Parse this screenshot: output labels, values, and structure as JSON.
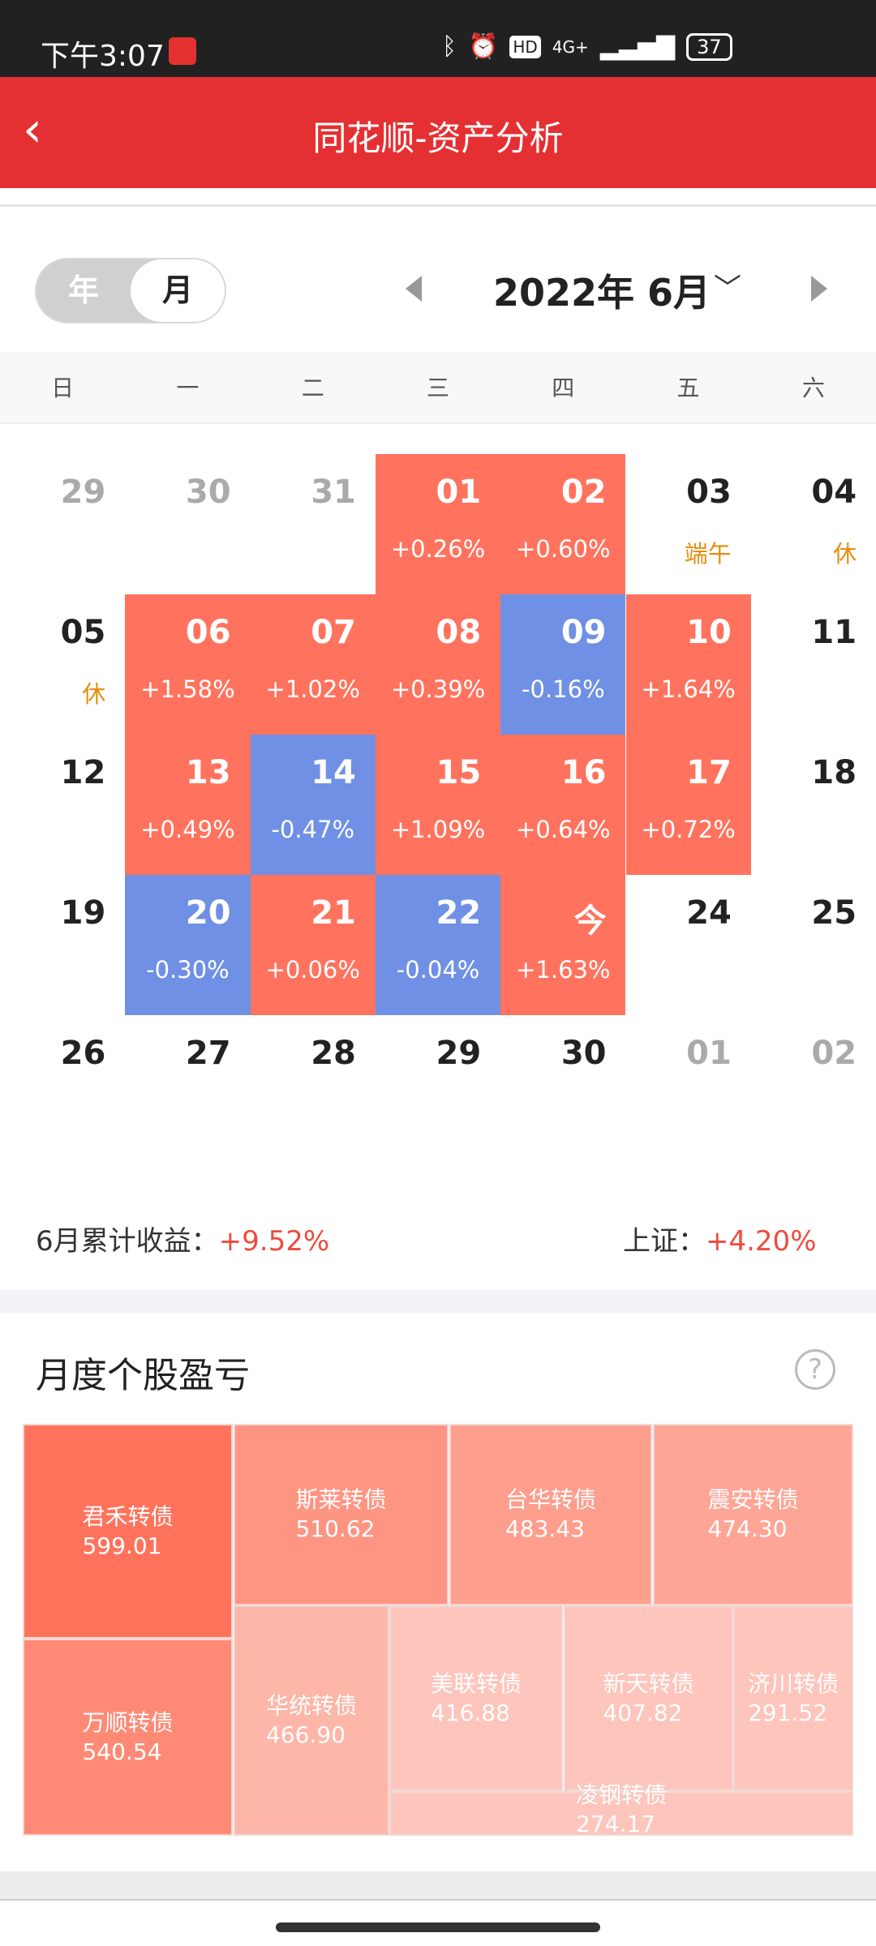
{
  "status": {
    "time": "下午3:07",
    "network": "4G+",
    "battery": "37"
  },
  "header": {
    "title": "同花顺-资产分析"
  },
  "toggle": {
    "year": "年",
    "month": "月",
    "selected": "月"
  },
  "nav": {
    "title": "2022年 6月"
  },
  "weekdays": [
    "日",
    "一",
    "二",
    "三",
    "四",
    "五",
    "六"
  ],
  "calendar": [
    {
      "d": "29",
      "muted": true
    },
    {
      "d": "30",
      "muted": true
    },
    {
      "d": "31",
      "muted": true
    },
    {
      "d": "01",
      "s": "+0.26%",
      "c": "red"
    },
    {
      "d": "02",
      "s": "+0.60%",
      "c": "red"
    },
    {
      "d": "03",
      "h": "端午"
    },
    {
      "d": "04",
      "h": "休"
    },
    {
      "d": "05",
      "h": "休"
    },
    {
      "d": "06",
      "s": "+1.58%",
      "c": "red"
    },
    {
      "d": "07",
      "s": "+1.02%",
      "c": "red"
    },
    {
      "d": "08",
      "s": "+0.39%",
      "c": "red"
    },
    {
      "d": "09",
      "s": "-0.16%",
      "c": "blue"
    },
    {
      "d": "10",
      "s": "+1.64%",
      "c": "red"
    },
    {
      "d": "11"
    },
    {
      "d": "12"
    },
    {
      "d": "13",
      "s": "+0.49%",
      "c": "red"
    },
    {
      "d": "14",
      "s": "-0.47%",
      "c": "blue"
    },
    {
      "d": "15",
      "s": "+1.09%",
      "c": "red"
    },
    {
      "d": "16",
      "s": "+0.64%",
      "c": "red"
    },
    {
      "d": "17",
      "s": "+0.72%",
      "c": "red"
    },
    {
      "d": "18"
    },
    {
      "d": "19"
    },
    {
      "d": "20",
      "s": "-0.30%",
      "c": "blue"
    },
    {
      "d": "21",
      "s": "+0.06%",
      "c": "red"
    },
    {
      "d": "22",
      "s": "-0.04%",
      "c": "blue"
    },
    {
      "d": "今",
      "s": "+1.63%",
      "c": "red"
    },
    {
      "d": "24"
    },
    {
      "d": "25"
    },
    {
      "d": "26"
    },
    {
      "d": "27"
    },
    {
      "d": "28"
    },
    {
      "d": "29"
    },
    {
      "d": "30"
    },
    {
      "d": "01",
      "muted": true
    },
    {
      "d": "02",
      "muted": true
    }
  ],
  "summary": {
    "label": "6月累计收益：",
    "value": "+9.52%",
    "index_label": "上证：",
    "index_value": "+4.20%"
  },
  "section": {
    "title": "月度个股盈亏",
    "help": "?"
  },
  "treemap": [
    {
      "name": "君禾转债",
      "value": "599.01",
      "color": "#ff735c"
    },
    {
      "name": "万顺转债",
      "value": "540.54",
      "color": "#fe8a76"
    },
    {
      "name": "斯莱转债",
      "value": "510.62",
      "color": "#fe9583"
    },
    {
      "name": "台华转债",
      "value": "483.43",
      "color": "#fe9e8d"
    },
    {
      "name": "震安转债",
      "value": "474.30",
      "color": "#fea596"
    },
    {
      "name": "华统转债",
      "value": "466.90",
      "color": "#fdb6a8"
    },
    {
      "name": "美联转债",
      "value": "416.88",
      "color": "#fdc5bc"
    },
    {
      "name": "新天转债",
      "value": "407.82",
      "color": "#fdc5bc"
    },
    {
      "name": "济川转债",
      "value": "291.52",
      "color": "#fdc5bc"
    },
    {
      "name": "凌钢转债",
      "value": "274.17",
      "color": "#fdc5bc"
    }
  ],
  "colors": {
    "header": "#e53033",
    "gain": "#ff735e",
    "loss": "#6f90e4",
    "holiday": "#e58f10"
  }
}
